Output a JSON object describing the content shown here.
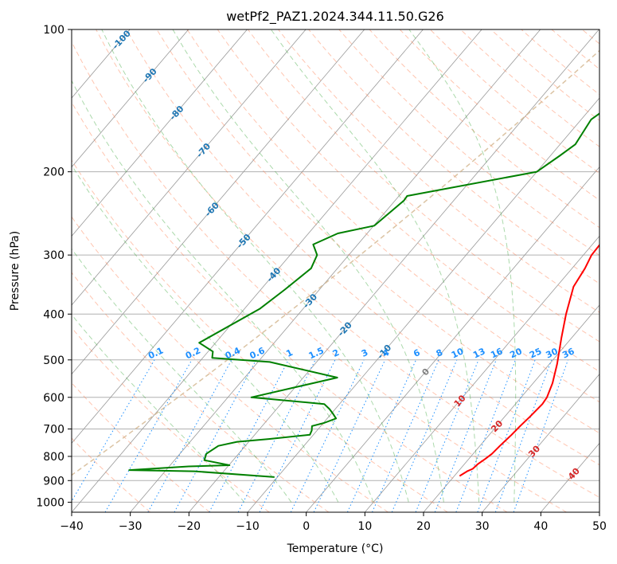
{
  "chart_data": {
    "type": "line",
    "title": "wetPf2_PAZ1.2024.344.11.50.G26",
    "xlabel": "Temperature (°C)",
    "ylabel": "Pressure (hPa)",
    "xlim": [
      -40,
      50
    ],
    "ylim": [
      1050,
      100
    ],
    "y_scale": "log",
    "skew": "skew-T log-p",
    "grid": true,
    "x_ticks": [
      -40,
      -30,
      -20,
      -10,
      0,
      10,
      20,
      30,
      40,
      50
    ],
    "y_ticks": [
      100,
      200,
      300,
      400,
      500,
      600,
      700,
      800,
      900,
      1000
    ],
    "colors": {
      "temperature": "#ff0000",
      "dewpoint": "#008000",
      "isotherm_labels": "#1f77b4",
      "mixing_ratio": "#1e90ff",
      "dry_adiabat": "#ff7f50",
      "moist_adiabat": "#2ca02c",
      "isotherm_grid": "#999999",
      "lcl_curve": "#d2b48c",
      "zero_label": "#808080",
      "warm_label": "#d62728"
    },
    "series": [
      {
        "name": "Temperature",
        "x": [
          20.9,
          21.5,
          22.1,
          22.3,
          22.8,
          23.2,
          23.4,
          23.8,
          24.0,
          24.3,
          24.6,
          24.4,
          23.3,
          21.3,
          18.3,
          15.6,
          12.9,
          12.2,
          11.4,
          11.1,
          11.0,
          11.0,
          10.0,
          7.9,
          7.3,
          6.7,
          6.3
        ],
        "y": [
          880,
          860,
          850,
          830,
          810,
          790,
          760,
          720,
          690,
          660,
          620,
          600,
          560,
          510,
          450,
          400,
          350,
          320,
          300,
          260,
          220,
          200,
          170,
          150,
          130,
          110,
          100
        ]
      },
      {
        "name": "Dewpoint",
        "x": [
          -10.5,
          -25.0,
          -36.3,
          -26.7,
          -19.9,
          -24.9,
          -25.5,
          -24.6,
          -22.0,
          -17.0,
          -10.6,
          -10.9,
          -11.5,
          -9.9,
          -8.5,
          -9.7,
          -11.0,
          -12.6,
          -26.0,
          -14.2,
          -28.0,
          -38.4,
          -39.2,
          -42.8,
          -37.4,
          -35.9,
          -34.5,
          -35.4,
          -37.6,
          -35.0,
          -29.9,
          -28.5,
          -28.6,
          -10.0,
          -8.4,
          -7.4,
          -8.3,
          -6.3,
          -4.5
        ],
        "y": [
          885,
          860,
          855,
          840,
          835,
          815,
          790,
          760,
          745,
          735,
          720,
          705,
          690,
          680,
          665,
          650,
          635,
          620,
          600,
          545,
          505,
          495,
          480,
          460,
          390,
          355,
          320,
          300,
          285,
          270,
          260,
          230,
          225,
          200,
          185,
          175,
          155,
          140,
          115
        ]
      }
    ],
    "isotherm_labels": [
      "-100",
      "-90",
      "-80",
      "-70",
      "-60",
      "-50",
      "-40",
      "-30",
      "-20",
      "-10"
    ],
    "zero_label": "0",
    "warm_labels": [
      "10",
      "20",
      "30",
      "40"
    ],
    "mixing_ratio_labels": [
      "0.1",
      "0.2",
      "0.4",
      "0.6",
      "1",
      "1.5",
      "2",
      "3",
      "4",
      "6",
      "8",
      "10",
      "13",
      "16",
      "20",
      "25",
      "30",
      "36"
    ]
  }
}
